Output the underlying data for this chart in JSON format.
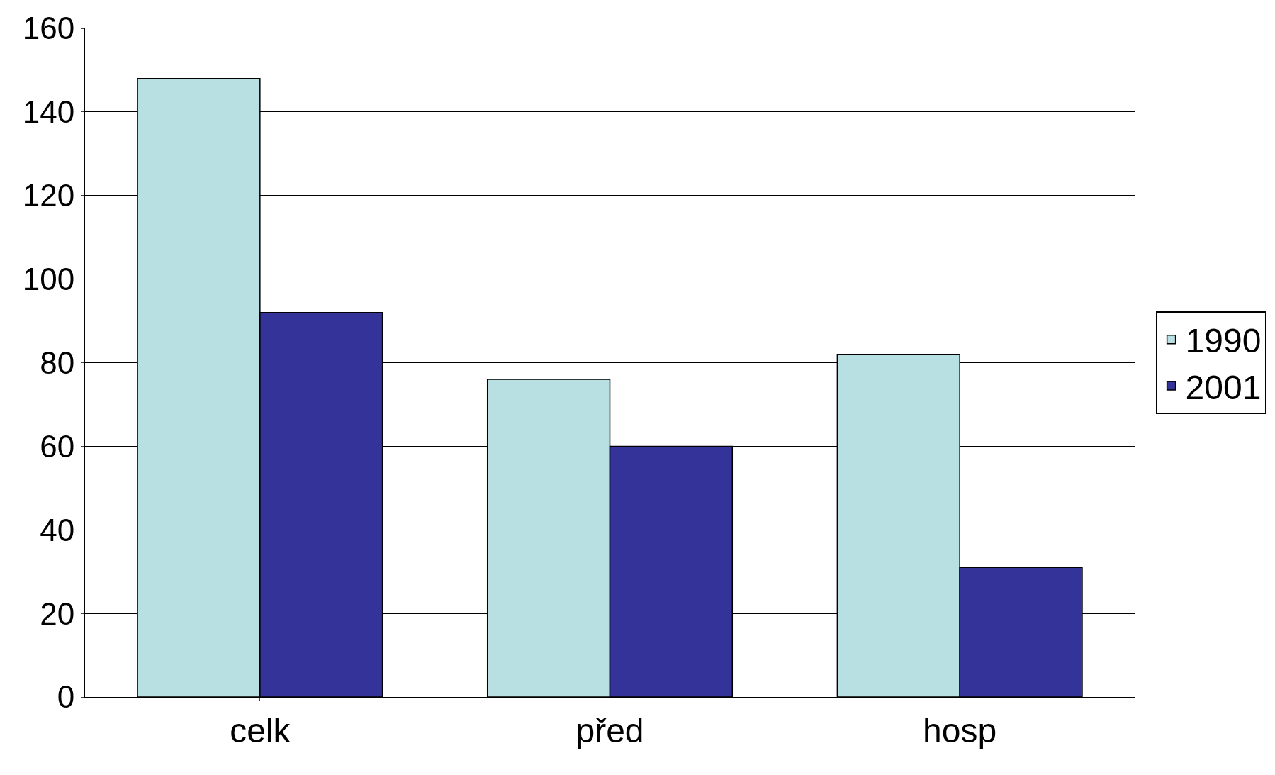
{
  "chart_data": {
    "type": "bar",
    "categories": [
      "celk",
      "před",
      "hosp"
    ],
    "series": [
      {
        "name": "1990",
        "color": "#b8e0e3",
        "values": [
          148,
          76,
          82
        ]
      },
      {
        "name": "2001",
        "color": "#333399",
        "values": [
          92,
          60,
          31
        ]
      }
    ],
    "ylim": [
      0,
      160
    ],
    "yticks": [
      0,
      20,
      40,
      60,
      80,
      100,
      120,
      140,
      160
    ],
    "grid": "y",
    "legend": "right"
  }
}
